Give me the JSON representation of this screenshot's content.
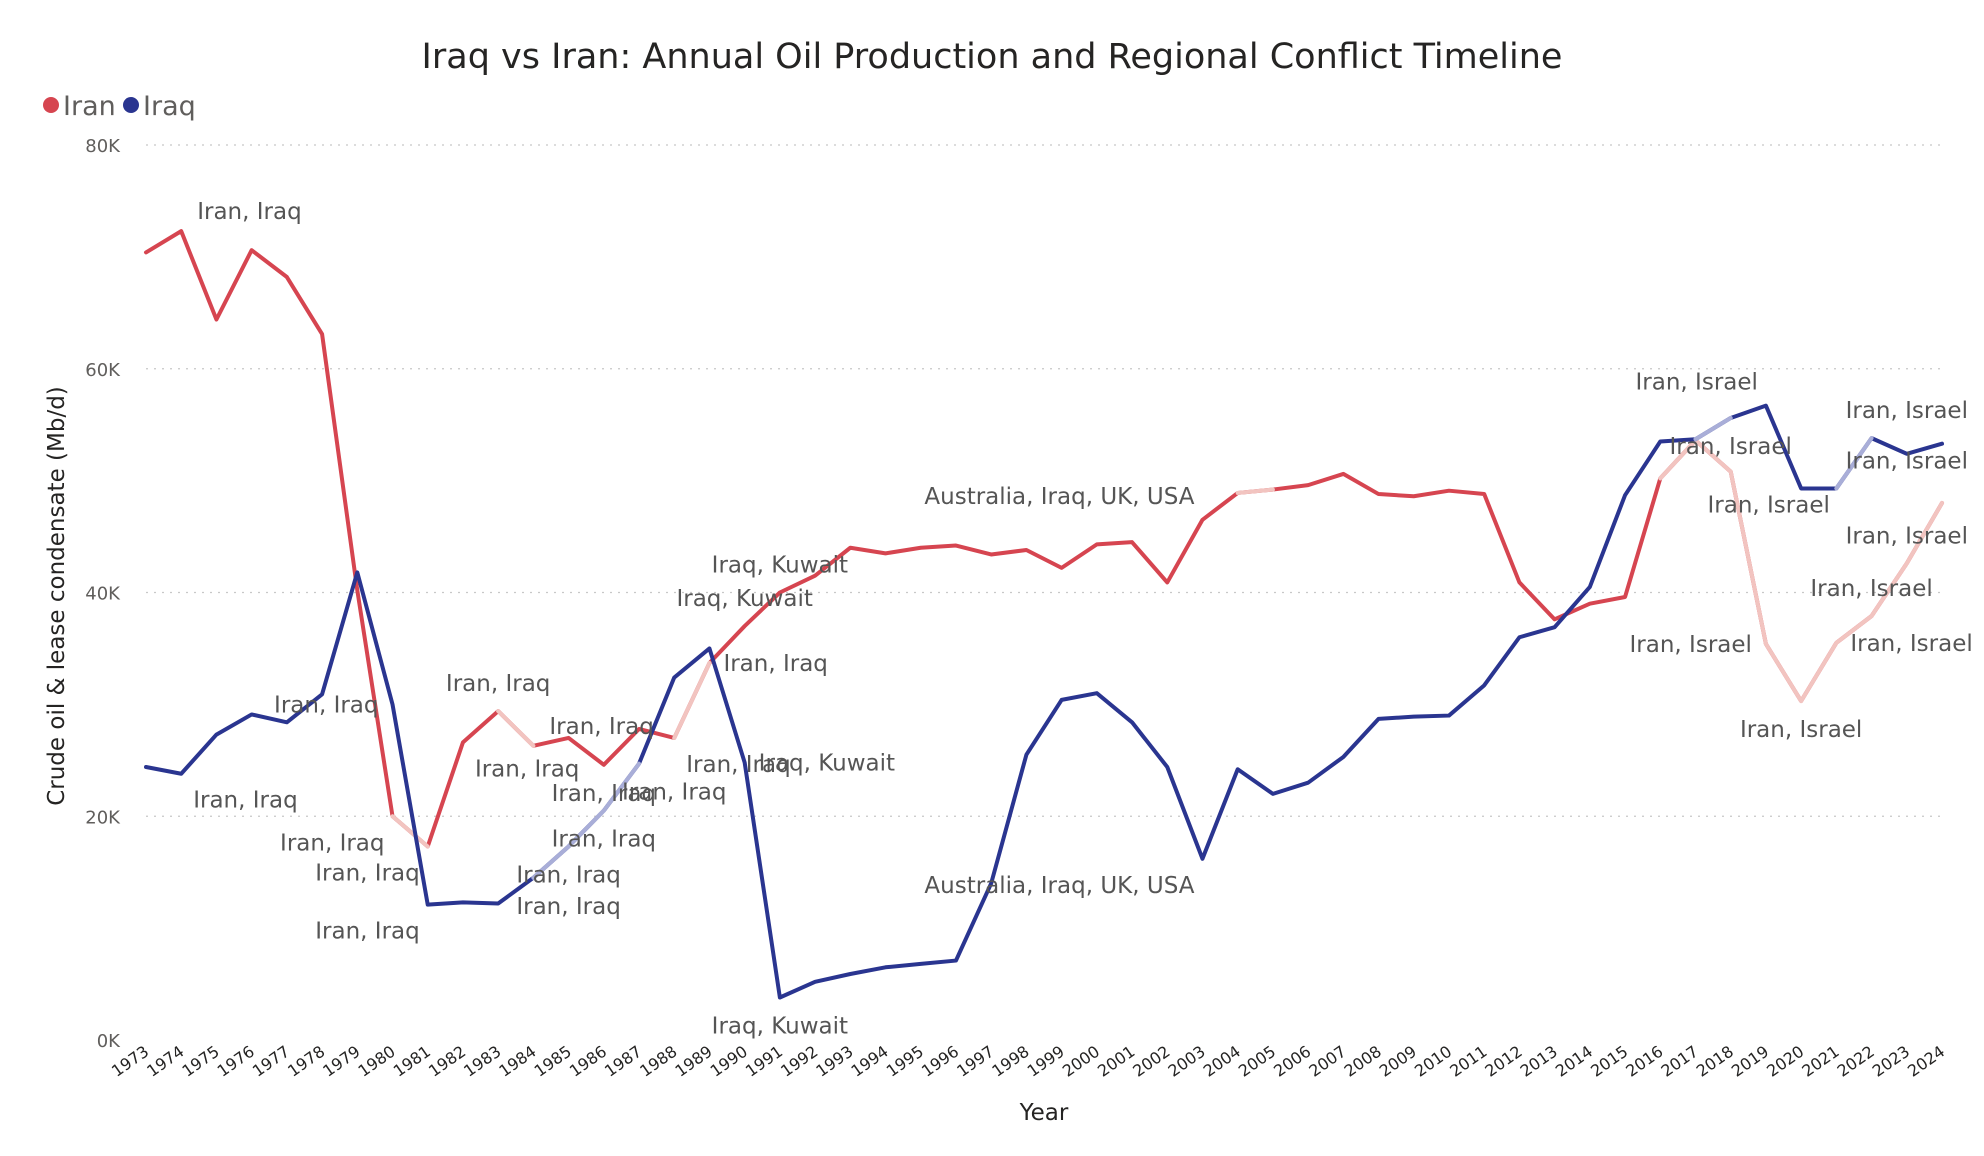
{
  "chart_data": {
    "type": "line",
    "title": "Iraq vs Iran: Annual Oil Production and Regional Conflict Timeline",
    "xlabel": "Year",
    "ylabel": "Crude oil & lease condensate (Mb/d)",
    "ylim": [
      0,
      80000
    ],
    "yticks": [
      {
        "value": 0,
        "label": "0K"
      },
      {
        "value": 20000,
        "label": "20K"
      },
      {
        "value": 40000,
        "label": "40K"
      },
      {
        "value": 60000,
        "label": "60K"
      },
      {
        "value": 80000,
        "label": "80K"
      }
    ],
    "grid": true,
    "legend_position": "top-left",
    "x": [
      "1973",
      "1974",
      "1975",
      "1976",
      "1977",
      "1978",
      "1979",
      "1980",
      "1981",
      "1982",
      "1983",
      "1984",
      "1985",
      "1986",
      "1987",
      "1988",
      "1989",
      "1990",
      "1991",
      "1992",
      "1993",
      "1994",
      "1995",
      "1996",
      "1997",
      "1998",
      "1999",
      "2000",
      "2001",
      "2002",
      "2003",
      "2004",
      "2005",
      "2006",
      "2007",
      "2008",
      "2009",
      "2010",
      "2011",
      "2012",
      "2013",
      "2014",
      "2015",
      "2016",
      "2017",
      "2018",
      "2019",
      "2020",
      "2021",
      "2022",
      "2023",
      "2024"
    ],
    "series": [
      {
        "name": "Iran",
        "color": "#d64550",
        "highlight_color": "#f2c4c0",
        "values": [
          70400,
          72300,
          64400,
          70600,
          68200,
          63100,
          40200,
          20000,
          17300,
          26600,
          29400,
          26300,
          27000,
          24600,
          27800,
          27000,
          33700,
          37000,
          40000,
          41500,
          44000,
          43500,
          44000,
          44200,
          43400,
          43800,
          42200,
          44300,
          44500,
          40900,
          46500,
          48900,
          49200,
          49600,
          50600,
          48800,
          48600,
          49100,
          48800,
          40900,
          37600,
          39000,
          39600,
          50200,
          53600,
          50800,
          35400,
          30300,
          35500,
          37900,
          42600,
          48000
        ],
        "highlight": [
          false,
          false,
          false,
          false,
          false,
          false,
          false,
          true,
          true,
          false,
          true,
          true,
          false,
          true,
          false,
          true,
          true,
          false,
          false,
          false,
          false,
          false,
          false,
          false,
          false,
          false,
          false,
          false,
          false,
          false,
          false,
          true,
          true,
          false,
          false,
          false,
          false,
          false,
          false,
          false,
          false,
          false,
          false,
          true,
          true,
          true,
          true,
          true,
          true,
          true,
          true,
          true
        ]
      },
      {
        "name": "Iraq",
        "color": "#2a3590",
        "highlight_color": "#a9aed8",
        "values": [
          24400,
          23800,
          27300,
          29100,
          28400,
          30900,
          41800,
          30000,
          12100,
          12300,
          12200,
          14500,
          17300,
          20500,
          24700,
          32400,
          35000,
          24800,
          3800,
          5200,
          5900,
          6500,
          6800,
          7100,
          14000,
          25500,
          30400,
          31000,
          28400,
          24400,
          16200,
          24200,
          22000,
          23000,
          25300,
          28700,
          28900,
          29000,
          31700,
          36000,
          36900,
          40500,
          48700,
          53500,
          53700,
          55600,
          56700,
          49300,
          49300,
          53800,
          52400,
          53300
        ],
        "highlight": [
          false,
          true,
          false,
          false,
          false,
          false,
          false,
          false,
          false,
          false,
          false,
          true,
          true,
          true,
          true,
          false,
          true,
          false,
          false,
          false,
          false,
          false,
          false,
          false,
          false,
          false,
          false,
          false,
          false,
          false,
          false,
          false,
          false,
          false,
          false,
          false,
          false,
          false,
          false,
          false,
          false,
          false,
          false,
          false,
          true,
          true,
          false,
          false,
          true,
          true,
          false,
          false
        ]
      }
    ],
    "annotations": [
      {
        "text": "Iran, Iraq",
        "x": "1974",
        "y": 72300,
        "series": "Iran",
        "anchor": "above-right"
      },
      {
        "text": "Iran, Iraq",
        "x": "1974",
        "y": 23800,
        "series": "Iraq",
        "anchor": "below-right"
      },
      {
        "text": "Iran, Iraq",
        "x": "1980",
        "y": 30000,
        "series": "Iran",
        "anchor": "left"
      },
      {
        "text": "Iran, Iraq",
        "x": "1980",
        "y": 20000,
        "series": "Iran",
        "anchor": "below-left"
      },
      {
        "text": "Iran, Iraq",
        "x": "1981",
        "y": 17300,
        "series": "Iran",
        "anchor": "below-left"
      },
      {
        "text": "Iran, Iraq",
        "x": "1981",
        "y": 12100,
        "series": "Iraq",
        "anchor": "below-left"
      },
      {
        "text": "Iran, Iraq",
        "x": "1982",
        "y": 26600,
        "series": "Iran",
        "anchor": "below-right"
      },
      {
        "text": "Iran, Iraq",
        "x": "1983",
        "y": 29400,
        "series": "Iran",
        "anchor": "above"
      },
      {
        "text": "Iran, Iraq",
        "x": "1984",
        "y": 26300,
        "series": "Iran",
        "anchor": "above-right"
      },
      {
        "text": "Iran, Iraq",
        "x": "1985",
        "y": 17300,
        "series": "Iraq",
        "anchor": "below"
      },
      {
        "text": "Iran, Iraq",
        "x": "1985",
        "y": 14500,
        "series": "Iraq",
        "anchor": "below"
      },
      {
        "text": "Iran, Iraq",
        "x": "1986",
        "y": 24600,
        "series": "Iran",
        "anchor": "below"
      },
      {
        "text": "Iran, Iraq",
        "x": "1986",
        "y": 20500,
        "series": "Iraq",
        "anchor": "below"
      },
      {
        "text": "Iran, Iraq",
        "x": "1988",
        "y": 27000,
        "series": "Iran",
        "anchor": "below-right"
      },
      {
        "text": "Iran, Iraq",
        "x": "1988",
        "y": 24700,
        "series": "Iraq",
        "anchor": "below"
      },
      {
        "text": "Iran, Iraq",
        "x": "1989",
        "y": 33700,
        "series": "Iran",
        "anchor": "right"
      },
      {
        "text": "Iraq, Kuwait",
        "x": "1990",
        "y": 37000,
        "series": "Iran",
        "anchor": "above"
      },
      {
        "text": "Iraq, Kuwait",
        "x": "1991",
        "y": 40000,
        "series": "Iran",
        "anchor": "above"
      },
      {
        "text": "Iraq, Kuwait",
        "x": "1990",
        "y": 24800,
        "series": "Iraq",
        "anchor": "right"
      },
      {
        "text": "Iraq, Kuwait",
        "x": "1991",
        "y": 3800,
        "series": "Iraq",
        "anchor": "below"
      },
      {
        "text": "Australia, Iraq, UK, USA",
        "x": "2003",
        "y": 46500,
        "series": "Iran",
        "anchor": "above-left"
      },
      {
        "text": "Australia, Iraq, UK, USA",
        "x": "2003",
        "y": 16200,
        "series": "Iraq",
        "anchor": "below-left"
      },
      {
        "text": "Iran, Israel",
        "x": "2019",
        "y": 56700,
        "series": "Iraq",
        "anchor": "above-left"
      },
      {
        "text": "Iran, Israel",
        "x": "2018",
        "y": 55600,
        "series": "Iraq",
        "anchor": "below"
      },
      {
        "text": "Iran, Israel",
        "x": "2017",
        "y": 50200,
        "series": "Iran",
        "anchor": "below-right"
      },
      {
        "text": "Iran, Israel",
        "x": "2019",
        "y": 35400,
        "series": "Iran",
        "anchor": "left"
      },
      {
        "text": "Iran, Israel",
        "x": "2020",
        "y": 30300,
        "series": "Iran",
        "anchor": "below"
      },
      {
        "text": "Iran, Israel",
        "x": "2021",
        "y": 35500,
        "series": "Iran",
        "anchor": "right"
      },
      {
        "text": "Iran, Israel",
        "x": "2022",
        "y": 37900,
        "series": "Iran",
        "anchor": "above"
      },
      {
        "text": "Iran, Israel",
        "x": "2023",
        "y": 42600,
        "series": "Iran",
        "anchor": "above"
      },
      {
        "text": "Iran, Israel",
        "x": "2023",
        "y": 49300,
        "series": "Iran",
        "anchor": "above"
      },
      {
        "text": "Iran, Israel",
        "x": "2023",
        "y": 53800,
        "series": "Iraq",
        "anchor": "above"
      }
    ]
  }
}
